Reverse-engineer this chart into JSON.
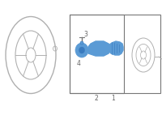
{
  "bg_color": "#ffffff",
  "line_color": "#b0b0b0",
  "blue_color": "#5b9bd5",
  "blue_dark": "#3a7bbf",
  "dark_line": "#777777",
  "label_color": "#666666",
  "fig_width": 2.0,
  "fig_height": 1.47,
  "dpi": 100,
  "labels": [
    "1",
    "2",
    "3",
    "4"
  ]
}
